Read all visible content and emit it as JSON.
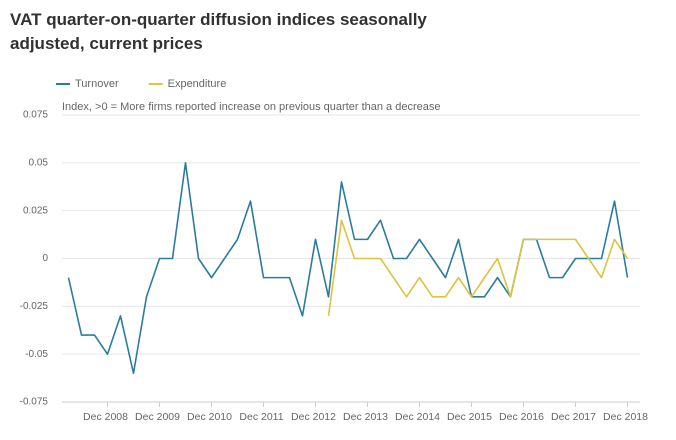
{
  "chart_data": {
    "type": "line",
    "title": "VAT quarter-on-quarter diffusion indices seasonally adjusted, current prices",
    "annotation": "Index, >0 = More firms reported increase on previous quarter than a decrease",
    "categories": [
      null,
      null,
      null,
      "Dec 2008",
      null,
      null,
      null,
      "Dec 2009",
      null,
      null,
      null,
      "Dec 2010",
      null,
      null,
      null,
      "Dec 2011",
      null,
      null,
      null,
      "Dec 2012",
      null,
      null,
      null,
      "Dec 2013",
      null,
      null,
      null,
      "Dec 2014",
      null,
      null,
      null,
      "Dec 2015",
      null,
      null,
      null,
      "Dec 2016",
      null,
      null,
      null,
      "Dec 2017",
      null,
      null,
      null,
      "Dec 2018"
    ],
    "series": [
      {
        "name": "Turnover",
        "color": "#2a7c9f",
        "values": [
          -0.01,
          -0.04,
          -0.04,
          -0.05,
          -0.03,
          -0.06,
          -0.02,
          0,
          0,
          0.05,
          0,
          -0.01,
          0,
          0.01,
          0.03,
          -0.01,
          -0.01,
          -0.01,
          -0.03,
          0.01,
          -0.02,
          0.04,
          0.01,
          0.01,
          0.02,
          0,
          0,
          0.01,
          0,
          -0.01,
          0.01,
          -0.02,
          -0.02,
          -0.01,
          -0.02,
          0.01,
          0.01,
          -0.01,
          -0.01,
          0,
          0,
          0,
          0.03,
          -0.01
        ]
      },
      {
        "name": "Expenditure",
        "color": "#dcc340",
        "values": [
          null,
          null,
          null,
          null,
          null,
          null,
          null,
          null,
          null,
          null,
          null,
          null,
          null,
          null,
          null,
          null,
          null,
          null,
          null,
          null,
          -0.03,
          0.02,
          0,
          0,
          0,
          -0.01,
          -0.02,
          -0.01,
          -0.02,
          -0.02,
          -0.01,
          -0.02,
          -0.01,
          0,
          -0.02,
          0.01,
          0.01,
          0.01,
          0.01,
          0.01,
          0,
          -0.01,
          0.01,
          0
        ]
      }
    ],
    "ylim": [
      -0.075,
      0.075
    ],
    "yticks": [
      0.075,
      0.05,
      0.025,
      0,
      -0.025,
      -0.05,
      -0.075
    ],
    "grid": true
  }
}
